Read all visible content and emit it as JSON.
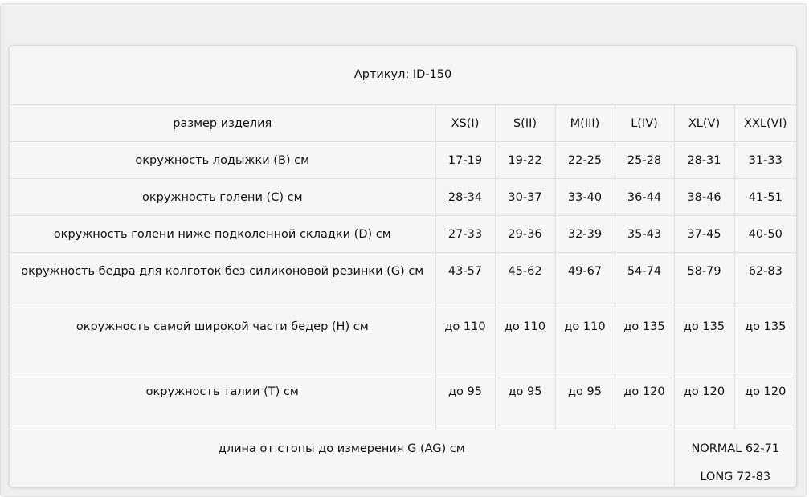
{
  "title": "Артикул: ID-150",
  "header": {
    "label": "размер изделия",
    "sizes": [
      "XS(I)",
      "S(II)",
      "M(III)",
      "L(IV)",
      "XL(V)",
      "XXL(VI)"
    ]
  },
  "rows": [
    {
      "label": "окружность лодыжки (B) см",
      "values": [
        "17-19",
        "19-22",
        "22-25",
        "25-28",
        "28-31",
        "31-33"
      ]
    },
    {
      "label": "окружность голени (C) см",
      "values": [
        "28-34",
        "30-37",
        "33-40",
        "36-44",
        "38-46",
        "41-51"
      ]
    },
    {
      "label": "окружность голени ниже подколенной складки (D) см",
      "values": [
        "27-33",
        "29-36",
        "32-39",
        "35-43",
        "37-45",
        "40-50"
      ]
    },
    {
      "label": "окружность бедра для колготок без силиконовой резинки (G) см",
      "values": [
        "43-57",
        "45-62",
        "49-67",
        "54-74",
        "58-79",
        "62-83"
      ]
    },
    {
      "label": "окружность самой широкой части бедер (H) см",
      "values": [
        "до 110",
        "до 110",
        "до 110",
        "до 135",
        "до 135",
        "до 135"
      ]
    },
    {
      "label": "окружность талии (T) см",
      "values": [
        "до 95",
        "до 95",
        "до 95",
        "до 120",
        "до 120",
        "до 120"
      ]
    }
  ],
  "length_row": {
    "label": "длина от стопы до измерения G (AG) см",
    "normal": "NORMAL 62-71",
    "long": "LONG 72-83"
  }
}
